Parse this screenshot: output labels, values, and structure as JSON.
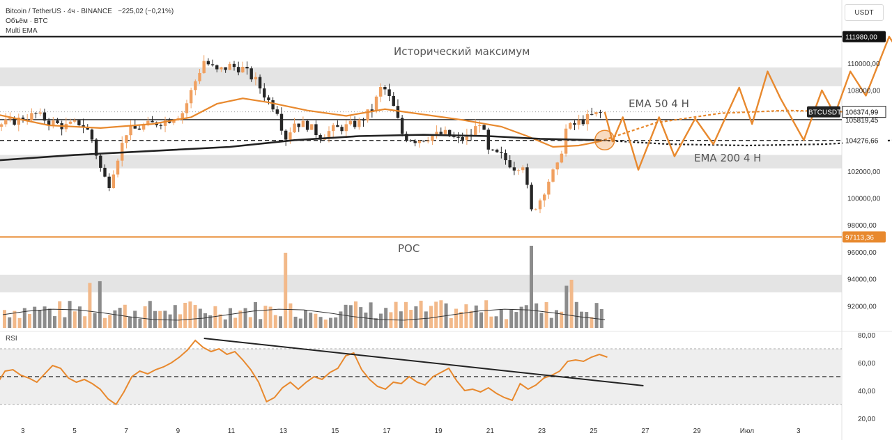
{
  "header": {
    "title": "Bitcoin / TetherUS · 4ч · BINANCE",
    "change": "−225,02 (−0,21%)",
    "volume_label": "Объём · BTC",
    "indicator_label": "Multi EMA"
  },
  "unit_label": "USDT",
  "rsi_label": "RSI",
  "colors": {
    "up_candle": "#f0a060",
    "down_candle": "#262626",
    "ema50": "#e8892e",
    "ema200": "#222222",
    "forecast": "#e8892e",
    "zone": "#d9d9d9",
    "poc_line": "#e8892e"
  },
  "annotations": {
    "ath_label": "Исторический максимум",
    "poc_label": "POC",
    "ema50_label": "EMA 50 4 H",
    "ema200_label": "EMA 200 4 H"
  },
  "chart_data": [
    {
      "type": "candlestick",
      "title": "Bitcoin / TetherUS · 4ч · BINANCE",
      "ylabel": "USDT",
      "ylim": [
        89000,
        113500
      ],
      "y_ticks": [
        "110000,00",
        "108000,00",
        "102000,00",
        "100000,00",
        "98000,00",
        "96000,00",
        "94000,00",
        "92000,00"
      ],
      "x_ticks": [
        "3",
        "5",
        "7",
        "9",
        "11",
        "13",
        "15",
        "17",
        "19",
        "21",
        "23",
        "25",
        "27",
        "29",
        "Июл",
        "3"
      ],
      "price_labels": {
        "ath": "111980,00",
        "current": "106374,99",
        "current_tag": "BTCUSDT",
        "level_1": "105819,45",
        "ema200_value": "104276,66",
        "poc": "97113,36"
      },
      "levels": {
        "ath": 111980,
        "level_1": 105819.45,
        "ema200_value": 104276.66,
        "poc": 97113.36
      },
      "zones": [
        [
          108300,
          109700
        ],
        [
          102200,
          103200
        ],
        [
          93000,
          94300
        ]
      ],
      "close_path": [
        {
          "day": 2.0,
          "close": 105400
        },
        {
          "day": 2.8,
          "close": 105800
        },
        {
          "day": 3.5,
          "close": 106200
        },
        {
          "day": 4.0,
          "close": 105700
        },
        {
          "day": 4.6,
          "close": 105300
        },
        {
          "day": 5.2,
          "close": 105600
        },
        {
          "day": 5.6,
          "close": 104800
        },
        {
          "day": 6.0,
          "close": 102200
        },
        {
          "day": 6.3,
          "close": 100900
        },
        {
          "day": 6.6,
          "close": 102700
        },
        {
          "day": 7.0,
          "close": 104900
        },
        {
          "day": 7.8,
          "close": 105400
        },
        {
          "day": 8.6,
          "close": 105800
        },
        {
          "day": 9.2,
          "close": 106400
        },
        {
          "day": 9.6,
          "close": 108400
        },
        {
          "day": 10.0,
          "close": 110200
        },
        {
          "day": 10.5,
          "close": 109400
        },
        {
          "day": 11.0,
          "close": 109800
        },
        {
          "day": 11.5,
          "close": 109600
        },
        {
          "day": 12.0,
          "close": 108700
        },
        {
          "day": 12.5,
          "close": 107200
        },
        {
          "day": 12.9,
          "close": 106400
        },
        {
          "day": 13.1,
          "close": 104300
        },
        {
          "day": 13.5,
          "close": 105600
        },
        {
          "day": 14.0,
          "close": 105400
        },
        {
          "day": 14.5,
          "close": 104600
        },
        {
          "day": 15.0,
          "close": 105100
        },
        {
          "day": 15.5,
          "close": 105300
        },
        {
          "day": 16.0,
          "close": 105600
        },
        {
          "day": 16.5,
          "close": 106600
        },
        {
          "day": 16.9,
          "close": 108400
        },
        {
          "day": 17.3,
          "close": 106900
        },
        {
          "day": 17.7,
          "close": 104600
        },
        {
          "day": 18.2,
          "close": 104300
        },
        {
          "day": 18.8,
          "close": 104600
        },
        {
          "day": 19.3,
          "close": 104800
        },
        {
          "day": 19.8,
          "close": 104300
        },
        {
          "day": 20.3,
          "close": 104600
        },
        {
          "day": 20.7,
          "close": 105800
        },
        {
          "day": 21.0,
          "close": 103400
        },
        {
          "day": 21.5,
          "close": 103100
        },
        {
          "day": 22.0,
          "close": 102300
        },
        {
          "day": 22.4,
          "close": 102600
        },
        {
          "day": 22.6,
          "close": 98800
        },
        {
          "day": 23.0,
          "close": 99900
        },
        {
          "day": 23.4,
          "close": 101600
        },
        {
          "day": 23.7,
          "close": 102400
        },
        {
          "day": 24.0,
          "close": 105100
        },
        {
          "day": 24.5,
          "close": 105600
        },
        {
          "day": 25.0,
          "close": 106100
        },
        {
          "day": 25.5,
          "close": 106400
        }
      ],
      "ema50": [
        {
          "day": 2.0,
          "value": 106200
        },
        {
          "day": 4.0,
          "value": 105400
        },
        {
          "day": 6.0,
          "value": 105200
        },
        {
          "day": 8.0,
          "value": 105500
        },
        {
          "day": 9.5,
          "value": 106000
        },
        {
          "day": 10.5,
          "value": 107000
        },
        {
          "day": 11.5,
          "value": 107400
        },
        {
          "day": 12.5,
          "value": 107100
        },
        {
          "day": 14.0,
          "value": 106500
        },
        {
          "day": 15.5,
          "value": 106100
        },
        {
          "day": 17.0,
          "value": 106600
        },
        {
          "day": 18.5,
          "value": 106200
        },
        {
          "day": 20.0,
          "value": 105800
        },
        {
          "day": 21.5,
          "value": 105300
        },
        {
          "day": 22.5,
          "value": 104600
        },
        {
          "day": 23.5,
          "value": 103800
        },
        {
          "day": 24.5,
          "value": 103900
        },
        {
          "day": 25.3,
          "value": 104200
        }
      ],
      "ema200": [
        {
          "day": 2.0,
          "value": 102800
        },
        {
          "day": 5.0,
          "value": 103200
        },
        {
          "day": 8.0,
          "value": 103500
        },
        {
          "day": 11.0,
          "value": 103800
        },
        {
          "day": 13.5,
          "value": 104300
        },
        {
          "day": 16.0,
          "value": 104600
        },
        {
          "day": 18.5,
          "value": 104700
        },
        {
          "day": 21.0,
          "value": 104600
        },
        {
          "day": 23.0,
          "value": 104400
        },
        {
          "day": 25.3,
          "value": 104300
        }
      ],
      "forecast_zigzag": [
        {
          "day": 25.5,
          "value": 106400
        },
        {
          "day": 25.8,
          "value": 104200
        },
        {
          "day": 26.2,
          "value": 106000
        },
        {
          "day": 26.8,
          "value": 102100
        },
        {
          "day": 27.6,
          "value": 106000
        },
        {
          "day": 28.2,
          "value": 103100
        },
        {
          "day": 29.0,
          "value": 105900
        },
        {
          "day": 29.7,
          "value": 104000
        },
        {
          "day": 30.7,
          "value": 108200
        },
        {
          "day": 31.2,
          "value": 105500
        },
        {
          "day": 31.8,
          "value": 109400
        },
        {
          "day": 32.3,
          "value": 107400
        },
        {
          "day": 33.2,
          "value": 104300
        },
        {
          "day": 33.9,
          "value": 108000
        },
        {
          "day": 34.4,
          "value": 106200
        },
        {
          "day": 35.0,
          "value": 109400
        },
        {
          "day": 35.6,
          "value": 107600
        },
        {
          "day": 36.5,
          "value": 111980
        },
        {
          "day": 36.8,
          "value": 111100
        }
      ],
      "forecast_ema50": [
        {
          "day": 25.3,
          "value": 104200
        },
        {
          "day": 27.5,
          "value": 105600
        },
        {
          "day": 30.0,
          "value": 106300
        },
        {
          "day": 32.5,
          "value": 106500
        },
        {
          "day": 35.0,
          "value": 106400
        }
      ],
      "forecast_ema200": [
        {
          "day": 25.3,
          "value": 104300
        },
        {
          "day": 28.0,
          "value": 104000
        },
        {
          "day": 31.0,
          "value": 103900
        },
        {
          "day": 34.0,
          "value": 104000
        },
        {
          "day": 36.8,
          "value": 104300
        }
      ]
    },
    {
      "type": "line",
      "title": "RSI",
      "ylim": [
        20,
        80
      ],
      "y_ticks": [
        "80,00",
        "60,00",
        "40,00",
        "20,00"
      ],
      "band": [
        30,
        70
      ],
      "midline": 50,
      "series": [
        {
          "values": [
            45,
            54,
            55,
            51,
            49,
            46,
            52,
            58,
            56,
            49,
            46,
            48,
            45,
            41,
            34,
            30,
            39,
            50,
            54,
            52,
            55,
            57,
            60,
            64,
            69,
            76,
            71,
            68,
            70,
            66,
            68,
            62,
            55,
            46,
            32,
            35,
            42,
            46,
            41,
            46,
            50,
            48,
            53,
            56,
            65,
            67,
            55,
            48,
            43,
            41,
            46,
            45,
            50,
            46,
            44,
            50,
            53,
            56,
            47,
            40,
            41,
            39,
            42,
            38,
            35,
            33,
            45,
            41,
            44,
            49,
            51,
            54,
            61,
            62,
            61,
            64,
            66,
            64
          ]
        }
      ],
      "trendline": [
        {
          "day": 10.0,
          "value": 77.5
        },
        {
          "day": 27.0,
          "value": 43.5
        }
      ]
    },
    {
      "type": "bar",
      "title": "Объём · BTC",
      "note": "volume histogram, relative heights"
    }
  ]
}
